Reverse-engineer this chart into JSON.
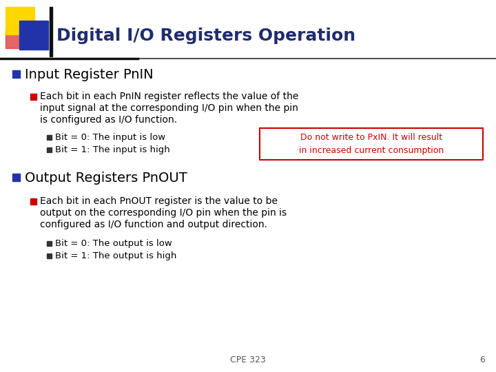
{
  "title": "Digital I/O Registers Operation",
  "title_color": "#1F2D6E",
  "title_fontsize": 18,
  "bg_color": "#FFFFFF",
  "bullet1_header": "Input Register PnIN",
  "bullet1_color": "#000000",
  "bullet1_marker_color": "#2233AA",
  "bullet1_sub_marker_color": "#CC0000",
  "bullet1_line1": "Each bit in each PnIN register reflects the value of the",
  "bullet1_line2": "input signal at the corresponding I/O pin when the pin",
  "bullet1_line3": "is configured as I/O function.",
  "bullet1_sub1": "Bit = 0: The input is low",
  "bullet1_sub2": "Bit = 1: The input is high",
  "note_text": "Do not write to PxIN. It will result\nin increased current consumption",
  "note_color": "#CC0000",
  "note_border_color": "#CC0000",
  "bullet2_header": "Output Registers PnOUT",
  "bullet2_color": "#000000",
  "bullet2_marker_color": "#2233AA",
  "bullet2_sub_marker_color": "#CC0000",
  "bullet2_line1": "Each bit in each PnOUT register is the value to be",
  "bullet2_line2": "output on the corresponding I/O pin when the pin is",
  "bullet2_line3": "configured as I/O function and output direction.",
  "bullet2_sub1": "Bit = 0: The output is low",
  "bullet2_sub2": "Bit = 1: The output is high",
  "footer_text": "CPE 323",
  "footer_page": "6",
  "footer_color": "#555555",
  "square_yellow": "#FFD700",
  "square_blue": "#2233AA",
  "square_red": "#DD3333",
  "sub_bullet_marker_color": "#333333"
}
